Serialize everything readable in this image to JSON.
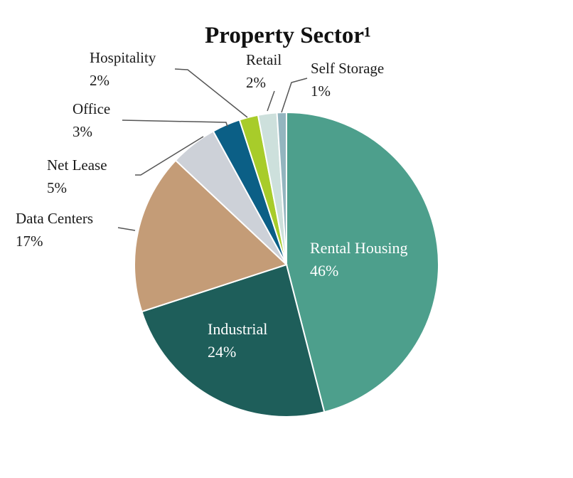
{
  "chart_data": {
    "type": "pie",
    "title": "Property Sector¹",
    "start_angle_deg": 0,
    "direction": "clockwise",
    "slices": [
      {
        "label": "Rental Housing",
        "value": 46,
        "value_label": "46%",
        "color": "#4d9f8c",
        "label_inside": true
      },
      {
        "label": "Industrial",
        "value": 24,
        "value_label": "24%",
        "color": "#1e5e5a",
        "label_inside": true
      },
      {
        "label": "Data Centers",
        "value": 17,
        "value_label": "17%",
        "color": "#c49c77",
        "label_inside": false
      },
      {
        "label": "Net Lease",
        "value": 5,
        "value_label": "5%",
        "color": "#cdd1d8",
        "label_inside": false
      },
      {
        "label": "Office",
        "value": 3,
        "value_label": "3%",
        "color": "#0b5f86",
        "label_inside": false
      },
      {
        "label": "Hospitality",
        "value": 2,
        "value_label": "2%",
        "color": "#a8cc2a",
        "label_inside": false
      },
      {
        "label": "Retail",
        "value": 2,
        "value_label": "2%",
        "color": "#cde0dc",
        "label_inside": false
      },
      {
        "label": "Self Storage",
        "value": 1,
        "value_label": "1%",
        "color": "#93b5bf",
        "label_inside": false
      }
    ]
  }
}
